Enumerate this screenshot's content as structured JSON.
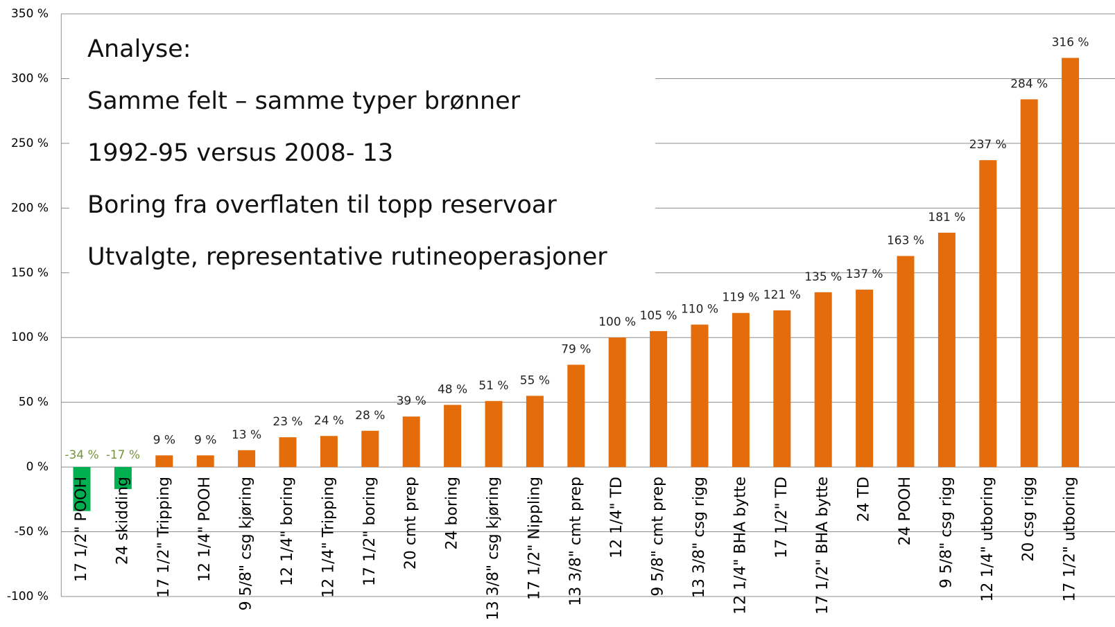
{
  "chart_data": {
    "type": "bar",
    "annotations": [
      "Analyse:",
      "Samme felt – samme  typer brønner",
      "1992-95 versus 2008- 13",
      "Boring fra overflaten til topp reservoar",
      "Utvalgte, representative  rutineoperasjoner"
    ],
    "categories": [
      "17 1/2\" POOH",
      "24 skidding",
      "17 1/2\" Tripping",
      "12 1/4\" POOH",
      "9 5/8\" csg kjøring",
      "12 1/4\" boring",
      "12 1/4\" Tripping",
      "17 1/2\" boring",
      "20 cmt prep",
      "24 boring",
      "13 3/8\" csg kjøring",
      "17 1/2\" Nippling",
      "13 3/8\" cmt prep",
      "12 1/4\" TD",
      "9 5/8\" cmt prep",
      "13 3/8\" csg rigg",
      "12 1/4\" BHA bytte",
      "17 1/2\" TD",
      "17 1/2\" BHA bytte",
      "24 TD",
      "24 POOH",
      "9 5/8\" csg rigg",
      "12 1/4\" utboring",
      "20 csg rigg",
      "17 1/2\" utboring"
    ],
    "values": [
      -34,
      -17,
      9,
      9,
      13,
      23,
      24,
      28,
      39,
      48,
      51,
      55,
      79,
      100,
      105,
      110,
      119,
      121,
      135,
      137,
      163,
      181,
      237,
      284,
      316
    ],
    "value_labels": [
      "-34 %",
      "-17 %",
      "9 %",
      "9 %",
      "13 %",
      "23 %",
      "24 %",
      "28 %",
      "39 %",
      "48 %",
      "51 %",
      "55 %",
      "79 %",
      "100 %",
      "105 %",
      "110 %",
      "119 %",
      "121 %",
      "135 %",
      "137 %",
      "163 %",
      "181 %",
      "237 %",
      "284 %",
      "316 %"
    ],
    "color": "#e46c0a",
    "negative_color": "#00b050",
    "negative_label_color": "#77933c",
    "ylim": [
      -100,
      350
    ],
    "yticks": [
      {
        "value": -100,
        "label": "-100 %"
      },
      {
        "value": -50,
        "label": "-50 %"
      },
      {
        "value": 0,
        "label": "0 %"
      },
      {
        "value": 50,
        "label": "50 %"
      },
      {
        "value": 100,
        "label": "100 %"
      },
      {
        "value": 150,
        "label": "150 %"
      },
      {
        "value": 200,
        "label": "200 %"
      },
      {
        "value": 250,
        "label": "250 %"
      },
      {
        "value": 300,
        "label": "300 %"
      },
      {
        "value": 350,
        "label": "350 %"
      }
    ],
    "grid": true
  }
}
